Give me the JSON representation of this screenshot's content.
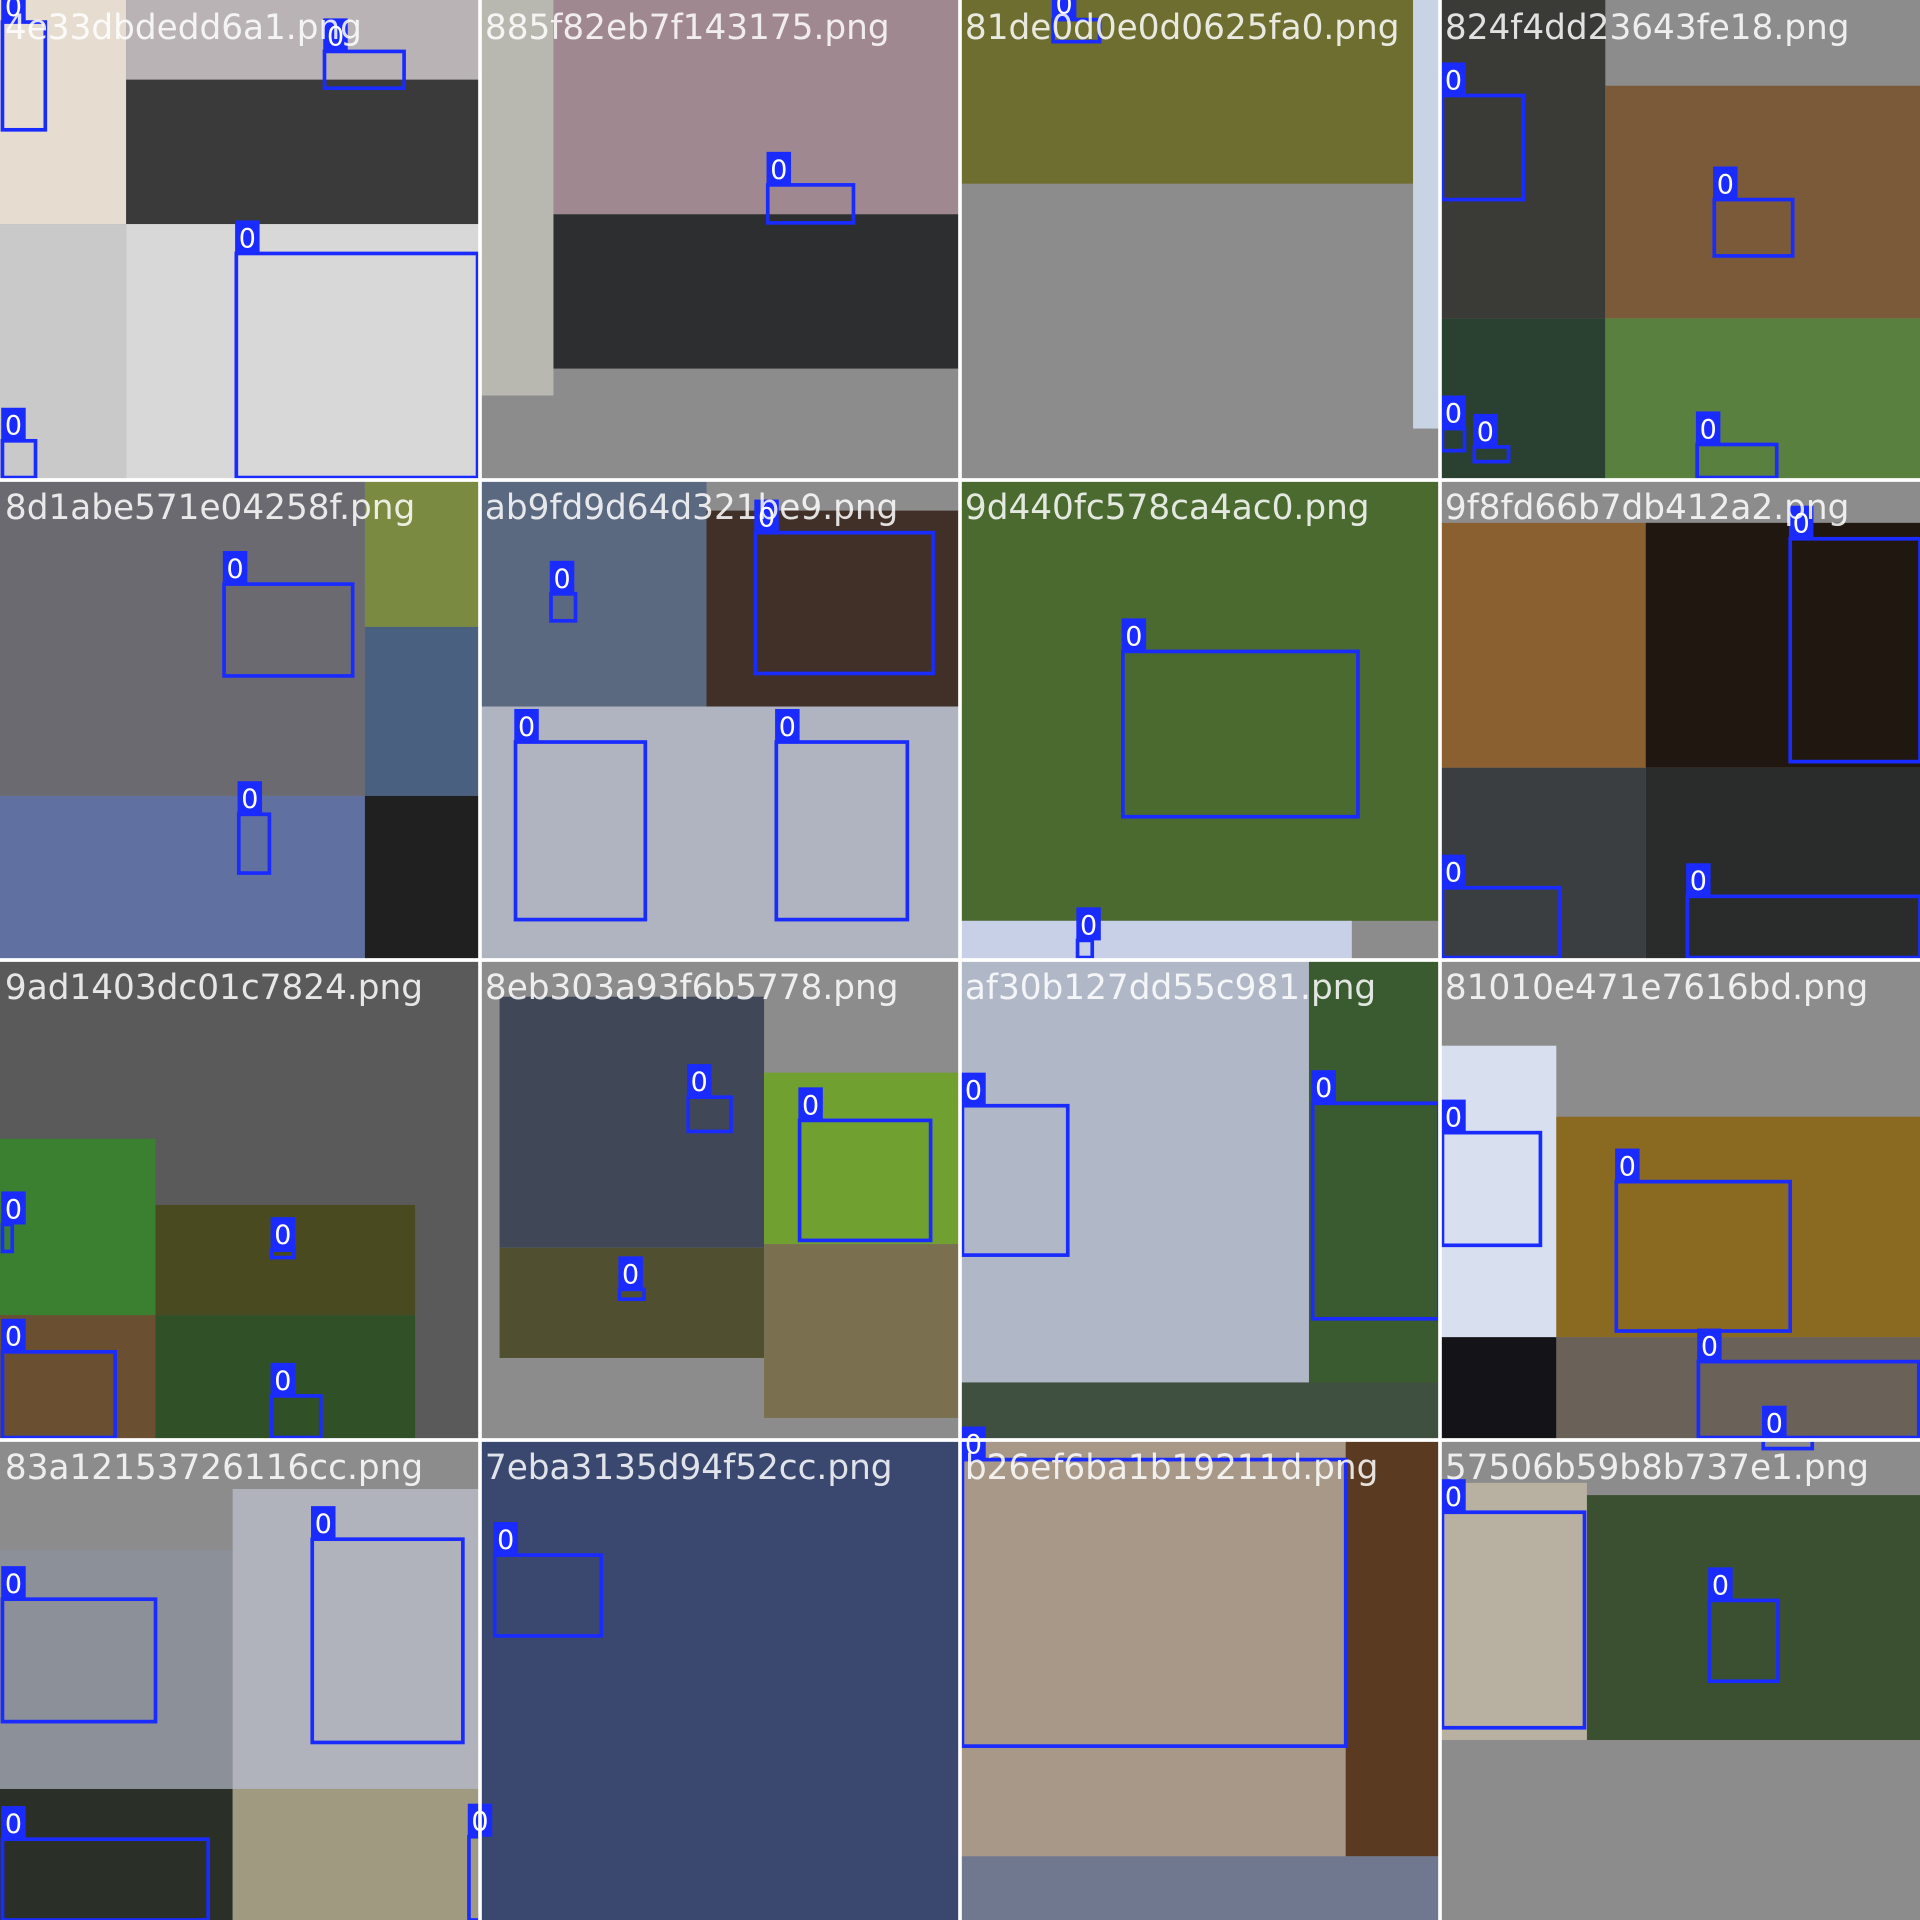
{
  "tiles": [
    {
      "filename": "4e33dbdedd6a1.png",
      "labels": [
        "0",
        "0",
        "0",
        "0"
      ]
    },
    {
      "filename": "885f82eb7f143175.png",
      "labels": [
        "0"
      ]
    },
    {
      "filename": "81de0d0e0d0625fa0.png",
      "labels": [
        "0"
      ]
    },
    {
      "filename": "824f4dd23643fe18.png",
      "labels": [
        "0",
        "0",
        "0",
        "0",
        "0"
      ]
    },
    {
      "filename": "8d1abe571e04258f.png",
      "labels": [
        "0",
        "0"
      ]
    },
    {
      "filename": "ab9fd9d64d321be9.png",
      "labels": [
        "0",
        "0",
        "0",
        "0"
      ]
    },
    {
      "filename": "9d440fc578ca4ac0.png",
      "labels": [
        "0",
        "0"
      ]
    },
    {
      "filename": "9f8fd66b7db412a2.png",
      "labels": [
        "0",
        "0",
        "0"
      ]
    },
    {
      "filename": "9ad1403dc01c7824.png",
      "labels": [
        "0",
        "0",
        "0",
        "0"
      ]
    },
    {
      "filename": "8eb303a93f6b5778.png",
      "labels": [
        "0",
        "0",
        "0"
      ]
    },
    {
      "filename": "af30b127dd55c981.png",
      "labels": [
        "0",
        "0"
      ]
    },
    {
      "filename": "81010e471e7616bd.png",
      "labels": [
        "0",
        "0",
        "0",
        "0"
      ]
    },
    {
      "filename": "83a12153726116cc.png",
      "labels": [
        "0",
        "0",
        "0",
        "0"
      ]
    },
    {
      "filename": "7eba3135d94f52cc.png",
      "labels": [
        "0"
      ]
    },
    {
      "filename": "b26ef6ba1b19211d.png",
      "labels": [
        "0"
      ]
    },
    {
      "filename": "57506b59b8b737e1.png",
      "labels": [
        "0",
        "0"
      ]
    }
  ]
}
